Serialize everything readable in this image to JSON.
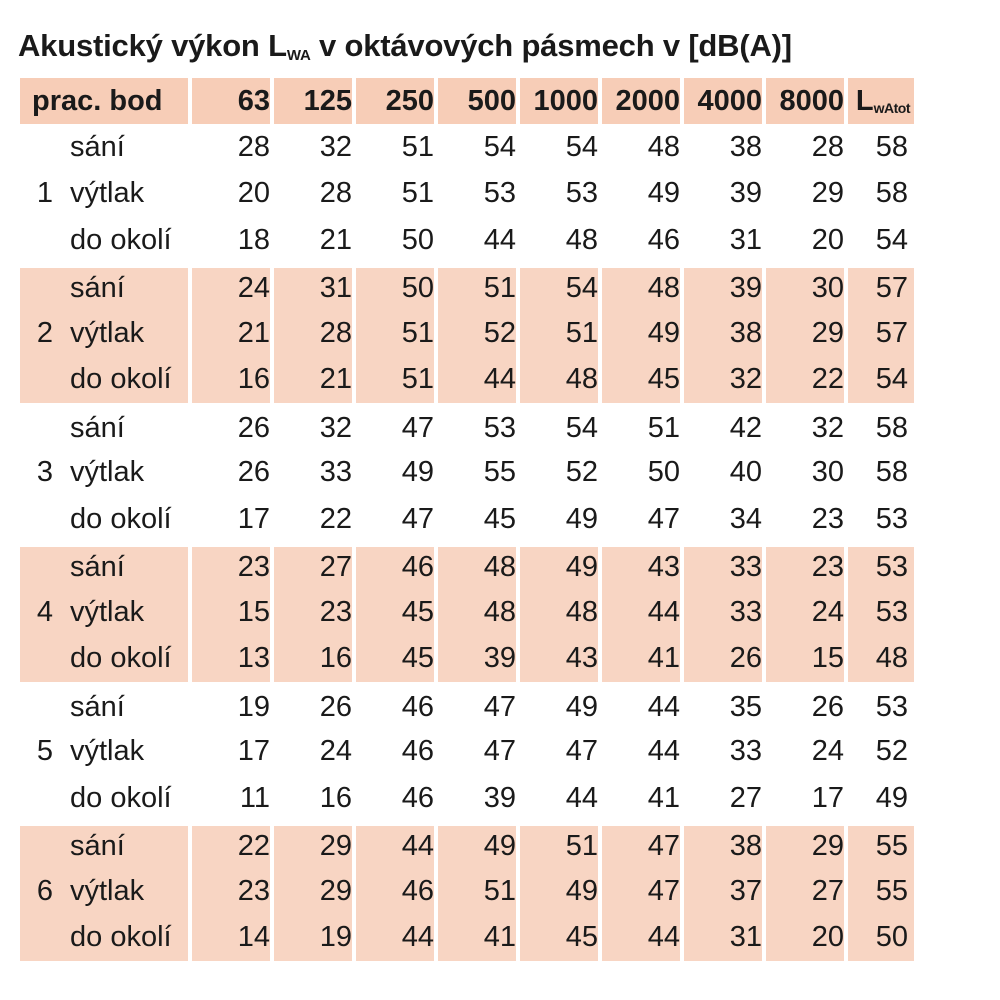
{
  "title": {
    "prefix": "Akustický výkon L",
    "subscript": "WA",
    "suffix": " v oktávových pásmech v [dB(A)]"
  },
  "colors": {
    "header_bg": "#f7cdb7",
    "shaded_row_bg": "#f8d5c3"
  },
  "header": {
    "bod": "prac. bod",
    "bands": [
      "63",
      "125",
      "250",
      "500",
      "1000",
      "2000",
      "4000",
      "8000"
    ],
    "total_main": "L",
    "total_sub": "wAtot"
  },
  "groups": [
    {
      "point": "1",
      "rows": [
        {
          "label": "sání",
          "values": [
            "28",
            "32",
            "51",
            "54",
            "54",
            "48",
            "38",
            "28"
          ],
          "total": "58"
        },
        {
          "label": "výtlak",
          "values": [
            "20",
            "28",
            "51",
            "53",
            "53",
            "49",
            "39",
            "29"
          ],
          "total": "58"
        },
        {
          "label": "do okolí",
          "values": [
            "18",
            "21",
            "50",
            "44",
            "48",
            "46",
            "31",
            "20"
          ],
          "total": "54"
        }
      ]
    },
    {
      "point": "2",
      "rows": [
        {
          "label": "sání",
          "values": [
            "24",
            "31",
            "50",
            "51",
            "54",
            "48",
            "39",
            "30"
          ],
          "total": "57"
        },
        {
          "label": "výtlak",
          "values": [
            "21",
            "28",
            "51",
            "52",
            "51",
            "49",
            "38",
            "29"
          ],
          "total": "57"
        },
        {
          "label": "do okolí",
          "values": [
            "16",
            "21",
            "51",
            "44",
            "48",
            "45",
            "32",
            "22"
          ],
          "total": "54"
        }
      ]
    },
    {
      "point": "3",
      "rows": [
        {
          "label": "sání",
          "values": [
            "26",
            "32",
            "47",
            "53",
            "54",
            "51",
            "42",
            "32"
          ],
          "total": "58"
        },
        {
          "label": "výtlak",
          "values": [
            "26",
            "33",
            "49",
            "55",
            "52",
            "50",
            "40",
            "30"
          ],
          "total": "58"
        },
        {
          "label": "do okolí",
          "values": [
            "17",
            "22",
            "47",
            "45",
            "49",
            "47",
            "34",
            "23"
          ],
          "total": "53"
        }
      ]
    },
    {
      "point": "4",
      "rows": [
        {
          "label": "sání",
          "values": [
            "23",
            "27",
            "46",
            "48",
            "49",
            "43",
            "33",
            "23"
          ],
          "total": "53"
        },
        {
          "label": "výtlak",
          "values": [
            "15",
            "23",
            "45",
            "48",
            "48",
            "44",
            "33",
            "24"
          ],
          "total": "53"
        },
        {
          "label": "do okolí",
          "values": [
            "13",
            "16",
            "45",
            "39",
            "43",
            "41",
            "26",
            "15"
          ],
          "total": "48"
        }
      ]
    },
    {
      "point": "5",
      "rows": [
        {
          "label": "sání",
          "values": [
            "19",
            "26",
            "46",
            "47",
            "49",
            "44",
            "35",
            "26"
          ],
          "total": "53"
        },
        {
          "label": "výtlak",
          "values": [
            "17",
            "24",
            "46",
            "47",
            "47",
            "44",
            "33",
            "24"
          ],
          "total": "52"
        },
        {
          "label": "do okolí",
          "values": [
            "11",
            "16",
            "46",
            "39",
            "44",
            "41",
            "27",
            "17"
          ],
          "total": "49"
        }
      ]
    },
    {
      "point": "6",
      "rows": [
        {
          "label": "sání",
          "values": [
            "22",
            "29",
            "44",
            "49",
            "51",
            "47",
            "38",
            "29"
          ],
          "total": "55"
        },
        {
          "label": "výtlak",
          "values": [
            "23",
            "29",
            "46",
            "51",
            "49",
            "47",
            "37",
            "27"
          ],
          "total": "55"
        },
        {
          "label": "do okolí",
          "values": [
            "14",
            "19",
            "44",
            "41",
            "45",
            "44",
            "31",
            "20"
          ],
          "total": "50"
        }
      ]
    }
  ]
}
